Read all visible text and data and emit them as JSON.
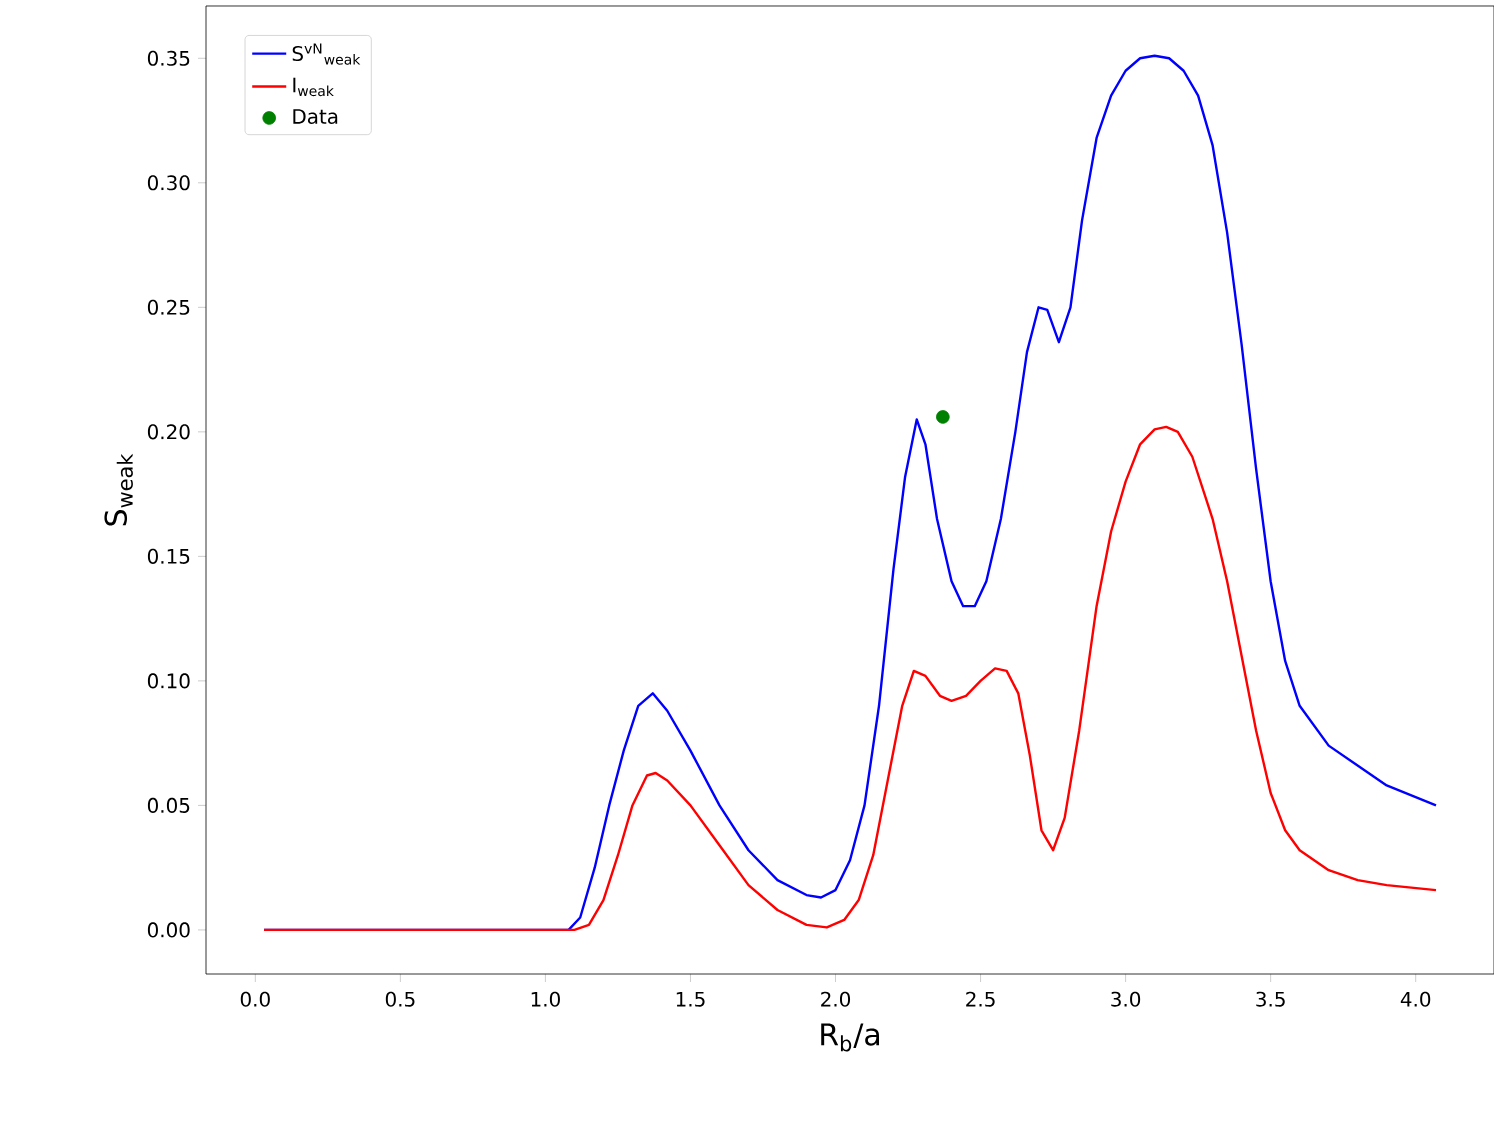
{
  "chart_data": {
    "type": "line",
    "xlabel": "R$_{b}$/a",
    "ylabel": "S$_{weak}$",
    "xlim": [
      -0.17,
      4.27
    ],
    "ylim": [
      -0.0177,
      0.371
    ],
    "xticks": [
      {
        "value": 0,
        "label": "0.0"
      },
      0.5,
      {
        "value": 1,
        "label": "1.0"
      },
      1.5,
      {
        "value": 2,
        "label": "2.0"
      },
      2.5,
      {
        "value": 3,
        "label": "3.0"
      },
      3.5,
      {
        "value": 4,
        "label": "4.0"
      }
    ],
    "yticks": [
      {
        "value": 0,
        "label": "0.00"
      },
      0.05,
      {
        "value": 0.1,
        "label": "0.10"
      },
      0.15,
      {
        "value": 0.2,
        "label": "0.20"
      },
      0.25,
      {
        "value": 0.3,
        "label": "0.30"
      },
      0.35
    ],
    "grid": false,
    "legend": "top left",
    "series": [
      {
        "name": "S$^{vN}$$_{weak}$",
        "color": "#0000ff",
        "marker": "none",
        "line_style": "solid",
        "x": [
          0.03,
          1.08,
          1.12,
          1.17,
          1.22,
          1.27,
          1.32,
          1.37,
          1.42,
          1.5,
          1.6,
          1.7,
          1.8,
          1.9,
          1.95,
          2.0,
          2.05,
          2.1,
          2.15,
          2.2,
          2.24,
          2.28,
          2.31,
          2.35,
          2.4,
          2.44,
          2.48,
          2.52,
          2.57,
          2.62,
          2.66,
          2.7,
          2.73,
          2.77,
          2.81,
          2.85,
          2.9,
          2.95,
          3.0,
          3.05,
          3.1,
          3.15,
          3.2,
          3.25,
          3.3,
          3.35,
          3.4,
          3.45,
          3.5,
          3.55,
          3.6,
          3.7,
          3.8,
          3.9,
          4.07
        ],
        "values": [
          0,
          0,
          0.005,
          0.025,
          0.05,
          0.072,
          0.09,
          0.095,
          0.088,
          0.072,
          0.05,
          0.032,
          0.02,
          0.014,
          0.013,
          0.016,
          0.028,
          0.05,
          0.09,
          0.145,
          0.182,
          0.205,
          0.195,
          0.165,
          0.14,
          0.13,
          0.13,
          0.14,
          0.165,
          0.2,
          0.232,
          0.25,
          0.249,
          0.236,
          0.25,
          0.285,
          0.318,
          0.335,
          0.345,
          0.35,
          0.351,
          0.35,
          0.345,
          0.335,
          0.315,
          0.28,
          0.235,
          0.185,
          0.14,
          0.108,
          0.09,
          0.074,
          0.066,
          0.058,
          0.05
        ]
      },
      {
        "name": "I$_{weak}$",
        "color": "#ff0000",
        "marker": "none",
        "line_style": "solid",
        "x": [
          0.03,
          1.1,
          1.15,
          1.2,
          1.25,
          1.3,
          1.35,
          1.38,
          1.42,
          1.5,
          1.6,
          1.7,
          1.8,
          1.9,
          1.97,
          2.03,
          2.08,
          2.13,
          2.18,
          2.23,
          2.27,
          2.31,
          2.36,
          2.4,
          2.45,
          2.5,
          2.55,
          2.59,
          2.63,
          2.67,
          2.71,
          2.75,
          2.79,
          2.84,
          2.9,
          2.95,
          3.0,
          3.05,
          3.1,
          3.14,
          3.18,
          3.23,
          3.3,
          3.35,
          3.4,
          3.45,
          3.5,
          3.55,
          3.6,
          3.7,
          3.8,
          3.9,
          4.07
        ],
        "values": [
          0,
          0,
          0.002,
          0.012,
          0.03,
          0.05,
          0.062,
          0.063,
          0.06,
          0.05,
          0.034,
          0.018,
          0.008,
          0.002,
          0.001,
          0.004,
          0.012,
          0.03,
          0.06,
          0.09,
          0.104,
          0.102,
          0.094,
          0.092,
          0.094,
          0.1,
          0.105,
          0.104,
          0.095,
          0.07,
          0.04,
          0.032,
          0.045,
          0.08,
          0.13,
          0.16,
          0.18,
          0.195,
          0.201,
          0.202,
          0.2,
          0.19,
          0.165,
          0.14,
          0.11,
          0.08,
          0.055,
          0.04,
          0.032,
          0.024,
          0.02,
          0.018,
          0.016
        ]
      },
      {
        "name": "Data",
        "type": "scatter",
        "color": "#008000",
        "marker": "circle",
        "x": [
          2.37
        ],
        "values": [
          0.206
        ]
      }
    ]
  }
}
